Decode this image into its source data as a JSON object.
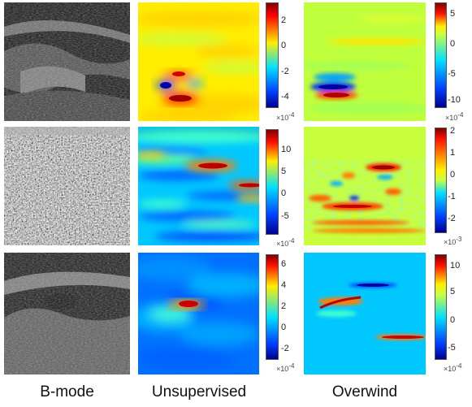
{
  "columns": [
    {
      "label": "B-mode"
    },
    {
      "label": "Unsupervised"
    },
    {
      "label": "Overwind"
    }
  ],
  "rows": [
    {
      "unsupervised_colorbar": {
        "ticks": [
          "2",
          "0",
          "-2",
          "-4"
        ],
        "scale_base": "×10",
        "scale_exp": "-4"
      },
      "overwind_colorbar": {
        "ticks": [
          "5",
          "0",
          "-5",
          "-10"
        ],
        "scale_base": "×10",
        "scale_exp": "-4"
      }
    },
    {
      "unsupervised_colorbar": {
        "ticks": [
          "10",
          "5",
          "0",
          "-5"
        ],
        "scale_base": "×10",
        "scale_exp": "-4"
      },
      "overwind_colorbar": {
        "ticks": [
          "2",
          "1",
          "0",
          "-1",
          "-2"
        ],
        "scale_base": "×10",
        "scale_exp": "-3"
      }
    },
    {
      "unsupervised_colorbar": {
        "ticks": [
          "6",
          "4",
          "2",
          "0",
          "-2"
        ],
        "scale_base": "×10",
        "scale_exp": "-4"
      },
      "overwind_colorbar": {
        "ticks": [
          "10",
          "5",
          "0",
          "-5"
        ],
        "scale_base": "×10",
        "scale_exp": "-4"
      }
    }
  ],
  "colors": {
    "jet_dark_blue": "#00008f",
    "jet_blue": "#0050ff",
    "jet_cyan": "#00e0ff",
    "jet_yellow": "#ffee00",
    "jet_red": "#ff2000",
    "jet_dark_red": "#800000"
  }
}
